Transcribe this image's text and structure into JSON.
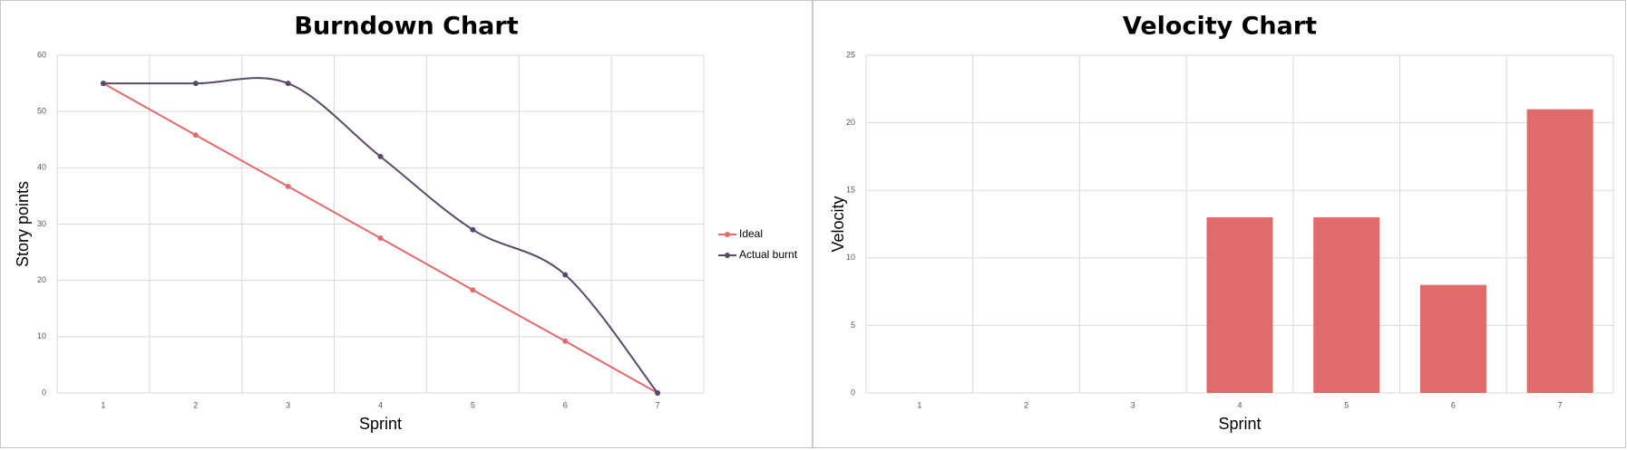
{
  "chart_data": [
    {
      "type": "line",
      "title": "Burndown Chart",
      "x_label": "Sprint",
      "y_label": "Story points",
      "categories": [
        "1",
        "2",
        "3",
        "4",
        "5",
        "6",
        "7"
      ],
      "series": [
        {
          "name": "Ideal",
          "color": "#e06b6b",
          "values": [
            55,
            45.8,
            36.7,
            27.5,
            18.3,
            9.2,
            0
          ],
          "smooth": false
        },
        {
          "name": "Actual burnt",
          "color": "#5a4a6a",
          "values": [
            55,
            55,
            55,
            42,
            29,
            21,
            0
          ],
          "smooth": true
        }
      ],
      "ylim": [
        0,
        60
      ],
      "yticks": [
        0,
        10,
        20,
        30,
        40,
        50,
        60
      ],
      "grid": true,
      "legend": "right"
    },
    {
      "type": "bar",
      "title": "Velocity Chart",
      "x_label": "Sprint",
      "y_label": "Velocity",
      "categories": [
        "1",
        "2",
        "3",
        "4",
        "5",
        "6",
        "7"
      ],
      "values": [
        0,
        0,
        0,
        13,
        13,
        8,
        21
      ],
      "color": "#e06b6b",
      "ylim": [
        0,
        25
      ],
      "yticks": [
        0,
        5,
        10,
        15,
        20,
        25
      ],
      "grid": true
    }
  ]
}
